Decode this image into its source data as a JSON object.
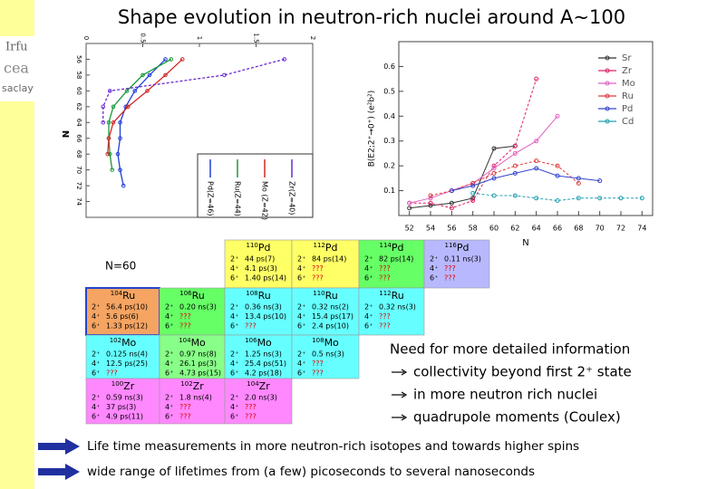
{
  "title": "Shape evolution in neutron-rich nuclei around A~100",
  "logos": [
    "Irfu",
    "cea",
    "saclay"
  ],
  "energy_plot": {
    "type": "line",
    "y_label": "N",
    "xlim": [
      0,
      2
    ],
    "xticks": [
      0,
      0.5,
      1,
      1.5,
      2
    ],
    "ylim": [
      54,
      76
    ],
    "yticks": [
      56,
      58,
      60,
      62,
      64,
      66,
      68,
      70,
      72,
      74
    ],
    "series": [
      {
        "name": "Pd(Z=46)",
        "color": "#1f3fd6",
        "x": [
          56,
          58,
          60,
          62,
          64,
          66,
          68,
          70,
          72
        ],
        "values": [
          0.7,
          0.56,
          0.43,
          0.35,
          0.3,
          0.3,
          0.28,
          0.3,
          0.33
        ]
      },
      {
        "name": "Ru(Z=44)",
        "color": "#1a9a3a",
        "x": [
          56,
          58,
          60,
          62,
          64,
          66,
          68,
          70
        ],
        "values": [
          0.75,
          0.5,
          0.36,
          0.24,
          0.2,
          0.2,
          0.21,
          0.23
        ]
      },
      {
        "name": "Mo (Z=42)",
        "color": "#d02828",
        "x": [
          56,
          58,
          60,
          62,
          64,
          66,
          68
        ],
        "values": [
          0.85,
          0.7,
          0.54,
          0.37,
          0.24,
          0.2,
          0.19
        ]
      },
      {
        "name": "Zr(Z=40)",
        "color": "#6a2ad0",
        "x": [
          56,
          58,
          60,
          62,
          64
        ],
        "values": [
          1.75,
          1.22,
          0.21,
          0.15,
          0.15
        ]
      }
    ]
  },
  "be2_plot": {
    "type": "line",
    "x_label": "N",
    "y_label": "B(E2;2⁺→0⁺) (e²b²)",
    "x": [
      52,
      54,
      56,
      58,
      60,
      62,
      64,
      66,
      68,
      70,
      72,
      74
    ],
    "xlim": [
      51,
      75
    ],
    "xticks": [
      52,
      54,
      56,
      58,
      60,
      62,
      64,
      66,
      68,
      70,
      72,
      74
    ],
    "ylim": [
      0,
      0.7
    ],
    "yticks": [
      0.1,
      0.2,
      0.3,
      0.4,
      0.5,
      0.6
    ],
    "series": [
      {
        "name": "Sr",
        "color": "#333333",
        "values": [
          0.03,
          0.04,
          0.05,
          0.07,
          0.27,
          0.28,
          null,
          null,
          null,
          null,
          null,
          null
        ]
      },
      {
        "name": "Zr",
        "color": "#e0206a",
        "values": [
          0.05,
          0.05,
          0.03,
          0.06,
          0.2,
          0.28,
          0.55,
          null,
          null,
          null,
          null,
          null
        ]
      },
      {
        "name": "Mo",
        "color": "#e060c0",
        "values": [
          0.05,
          0.07,
          0.1,
          0.13,
          0.19,
          0.25,
          0.3,
          0.4,
          null,
          null,
          null,
          null
        ]
      },
      {
        "name": "Ru",
        "color": "#e03a3a",
        "values": [
          null,
          0.08,
          0.1,
          0.13,
          0.17,
          0.2,
          0.22,
          0.2,
          0.13,
          null,
          null,
          null
        ]
      },
      {
        "name": "Pd",
        "color": "#3344cc",
        "values": [
          null,
          null,
          0.1,
          0.12,
          0.15,
          0.17,
          0.19,
          0.16,
          0.15,
          0.14,
          null,
          null
        ]
      },
      {
        "name": "Cd",
        "color": "#20a0b0",
        "values": [
          null,
          null,
          null,
          0.09,
          0.08,
          0.08,
          0.07,
          0.06,
          0.07,
          0.07,
          0.07,
          0.07
        ]
      }
    ]
  },
  "table": {
    "label": "N=60",
    "cells": [
      {
        "mass": 110,
        "symbol": "Pd",
        "lines": [
          [
            "2⁺",
            "44 ps(7)"
          ],
          [
            "4⁺",
            "4.1 ps(3)"
          ],
          [
            "6⁺",
            "1.40 ps(14)"
          ]
        ]
      },
      {
        "mass": 112,
        "symbol": "Pd",
        "lines": [
          [
            "2⁺",
            "84 ps(14)"
          ],
          [
            "4⁺",
            "???"
          ],
          [
            "6⁺",
            "???"
          ]
        ]
      },
      {
        "mass": 114,
        "symbol": "Pd",
        "lines": [
          [
            "2⁺",
            "82 ps(14)"
          ],
          [
            "4⁺",
            "???"
          ],
          [
            "6⁺",
            "???"
          ]
        ]
      },
      {
        "mass": 116,
        "symbol": "Pd",
        "lines": [
          [
            "2⁺",
            "0.11 ns(3)"
          ],
          [
            "4⁺",
            "???"
          ],
          [
            "6⁺",
            "???"
          ]
        ]
      },
      {
        "mass": 104,
        "symbol": "Ru",
        "lines": [
          [
            "2⁺",
            "56.4 ps(10)"
          ],
          [
            "4⁺",
            "5.6 ps(6)"
          ],
          [
            "6⁺",
            "1.33 ps(12)"
          ]
        ]
      },
      {
        "mass": 106,
        "symbol": "Ru",
        "lines": [
          [
            "2⁺",
            "0.20 ns(3)"
          ],
          [
            "4⁺",
            "???"
          ],
          [
            "6⁺",
            "???"
          ]
        ]
      },
      {
        "mass": 108,
        "symbol": "Ru",
        "lines": [
          [
            "2⁺",
            "0.36 ns(3)"
          ],
          [
            "4⁺",
            "13.4 ps(10)"
          ],
          [
            "6⁺",
            "???"
          ]
        ]
      },
      {
        "mass": 110,
        "symbol": "Ru",
        "lines": [
          [
            "2⁺",
            "0.32 ns(2)"
          ],
          [
            "4⁺",
            "15.4 ps(17)"
          ],
          [
            "6⁺",
            "2.4 ps(10)"
          ]
        ]
      },
      {
        "mass": 112,
        "symbol": "Ru",
        "lines": [
          [
            "2⁺",
            "0.32 ns(3)"
          ],
          [
            "4⁺",
            "???"
          ],
          [
            "6⁺",
            "???"
          ]
        ]
      },
      {
        "mass": 102,
        "symbol": "Mo",
        "lines": [
          [
            "2⁺",
            "0.125 ns(4)"
          ],
          [
            "4⁺",
            "12.5 ps(25)"
          ],
          [
            "6⁺",
            "???"
          ]
        ]
      },
      {
        "mass": 104,
        "symbol": "Mo",
        "lines": [
          [
            "2⁺",
            "0.97 ns(8)"
          ],
          [
            "4⁺",
            "26.1 ps(3)"
          ],
          [
            "6⁺",
            "4.73 ps(15)"
          ]
        ]
      },
      {
        "mass": 106,
        "symbol": "Mo",
        "lines": [
          [
            "2⁺",
            "1.25 ns(3)"
          ],
          [
            "4⁺",
            "25.4 ps(51)"
          ],
          [
            "6⁺",
            "4.2 ps(18)"
          ]
        ]
      },
      {
        "mass": 108,
        "symbol": "Mo",
        "lines": [
          [
            "2⁺",
            "0.5 ns(3)"
          ],
          [
            "4⁺",
            "???"
          ],
          [
            "6⁺",
            "???"
          ]
        ]
      },
      {
        "mass": 100,
        "symbol": "Zr",
        "lines": [
          [
            "2⁺",
            "0.59 ns(3)"
          ],
          [
            "4⁺",
            "37 ps(3)"
          ],
          [
            "6⁺",
            "4.9 ps(11)"
          ]
        ]
      },
      {
        "mass": 102,
        "symbol": "Zr",
        "lines": [
          [
            "2⁺",
            "1.8 ns(4)"
          ],
          [
            "4⁺",
            "???"
          ],
          [
            "6⁺",
            "???"
          ]
        ]
      },
      {
        "mass": 104,
        "symbol": "Zr",
        "lines": [
          [
            "2⁺",
            "2.0 ns(3)"
          ],
          [
            "4⁺",
            "???"
          ],
          [
            "6⁺",
            "???"
          ]
        ]
      }
    ]
  },
  "notes": {
    "heading": "Need for more detailed information",
    "items": [
      "collectivity beyond first 2⁺ state",
      "in more neutron rich nuclei",
      "quadrupole moments (Coulex)"
    ]
  },
  "bullets": [
    "Life time measurements in more neutron-rich isotopes and towards higher spins",
    "wide range of lifetimes from (a few) picoseconds to several nanoseconds"
  ]
}
